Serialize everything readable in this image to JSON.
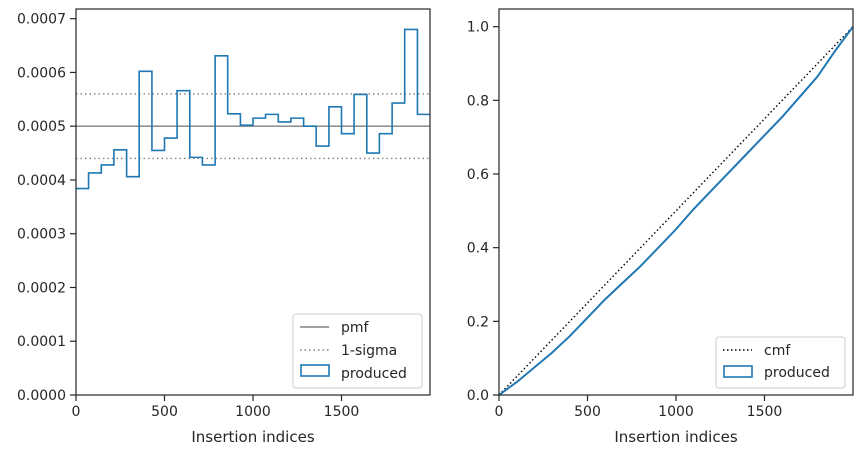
{
  "chart_data": [
    {
      "type": "step",
      "xlabel": "Insertion indices",
      "ylabel": "",
      "xlim": [
        0,
        2000
      ],
      "ylim": [
        0,
        0.000718
      ],
      "xticks": [
        0,
        500,
        1000,
        1500
      ],
      "xtick_labels": [
        "0",
        "500",
        "1000",
        "1500"
      ],
      "yticks": [
        0,
        0.0001,
        0.0002,
        0.0003,
        0.0004,
        0.0005,
        0.0006,
        0.0007
      ],
      "ytick_labels": [
        "0.0000",
        "0.0001",
        "0.0002",
        "0.0003",
        "0.0004",
        "0.0005",
        "0.0006",
        "0.0007"
      ],
      "legend_position": "bottom-right",
      "colors": {
        "produced": "#1f77b4",
        "pmf": "#808080",
        "sigma": "#808080"
      },
      "bin_edges": [
        0,
        71,
        143,
        214,
        286,
        357,
        429,
        500,
        571,
        643,
        714,
        786,
        857,
        929,
        1000,
        1071,
        1143,
        1214,
        1286,
        1357,
        1429,
        1500,
        1571,
        1643,
        1714,
        1786,
        1857,
        1929,
        2000
      ],
      "series": [
        {
          "name": "produced",
          "values": [
            0.000384,
            0.000413,
            0.000428,
            0.000456,
            0.000406,
            0.000602,
            0.000455,
            0.000478,
            0.000566,
            0.000442,
            0.000428,
            0.000631,
            0.000523,
            0.000502,
            0.000515,
            0.000522,
            0.000508,
            0.000515,
            0.0005,
            0.000463,
            0.000536,
            0.000486,
            0.000559,
            0.00045,
            0.000486,
            0.000543,
            0.00068,
            0.000522
          ]
        }
      ],
      "reference_lines": [
        {
          "name": "pmf",
          "y": 0.0005,
          "style": "solid"
        },
        {
          "name": "1-sigma",
          "y": [
            0.00044,
            0.00056
          ],
          "style": "dotted"
        }
      ],
      "legend": [
        "pmf",
        "1-sigma",
        "produced"
      ]
    },
    {
      "type": "line",
      "xlabel": "Insertion indices",
      "ylabel": "",
      "xlim": [
        0,
        2000
      ],
      "ylim": [
        0,
        1.048
      ],
      "xticks": [
        0,
        500,
        1000,
        1500
      ],
      "xtick_labels": [
        "0",
        "500",
        "1000",
        "1500"
      ],
      "yticks": [
        0,
        0.2,
        0.4,
        0.6,
        0.8,
        1.0
      ],
      "ytick_labels": [
        "0.0",
        "0.2",
        "0.4",
        "0.6",
        "0.8",
        "1.0"
      ],
      "legend_position": "bottom-right",
      "colors": {
        "produced": "#1f77b4",
        "cmf": "#000000"
      },
      "series": [
        {
          "name": "cmf",
          "style": "dotted",
          "x": [
            0,
            2000
          ],
          "y": [
            0,
            1.0
          ]
        },
        {
          "name": "produced",
          "x": [
            0,
            100,
            200,
            300,
            400,
            500,
            600,
            700,
            800,
            900,
            1000,
            1100,
            1200,
            1300,
            1400,
            1500,
            1600,
            1700,
            1800,
            1900,
            2000
          ],
          "y": [
            0,
            0.035,
            0.075,
            0.115,
            0.16,
            0.21,
            0.26,
            0.305,
            0.35,
            0.4,
            0.45,
            0.505,
            0.555,
            0.605,
            0.655,
            0.705,
            0.755,
            0.81,
            0.865,
            0.935,
            1.0
          ]
        }
      ],
      "legend": [
        "cmf",
        "produced"
      ]
    }
  ]
}
